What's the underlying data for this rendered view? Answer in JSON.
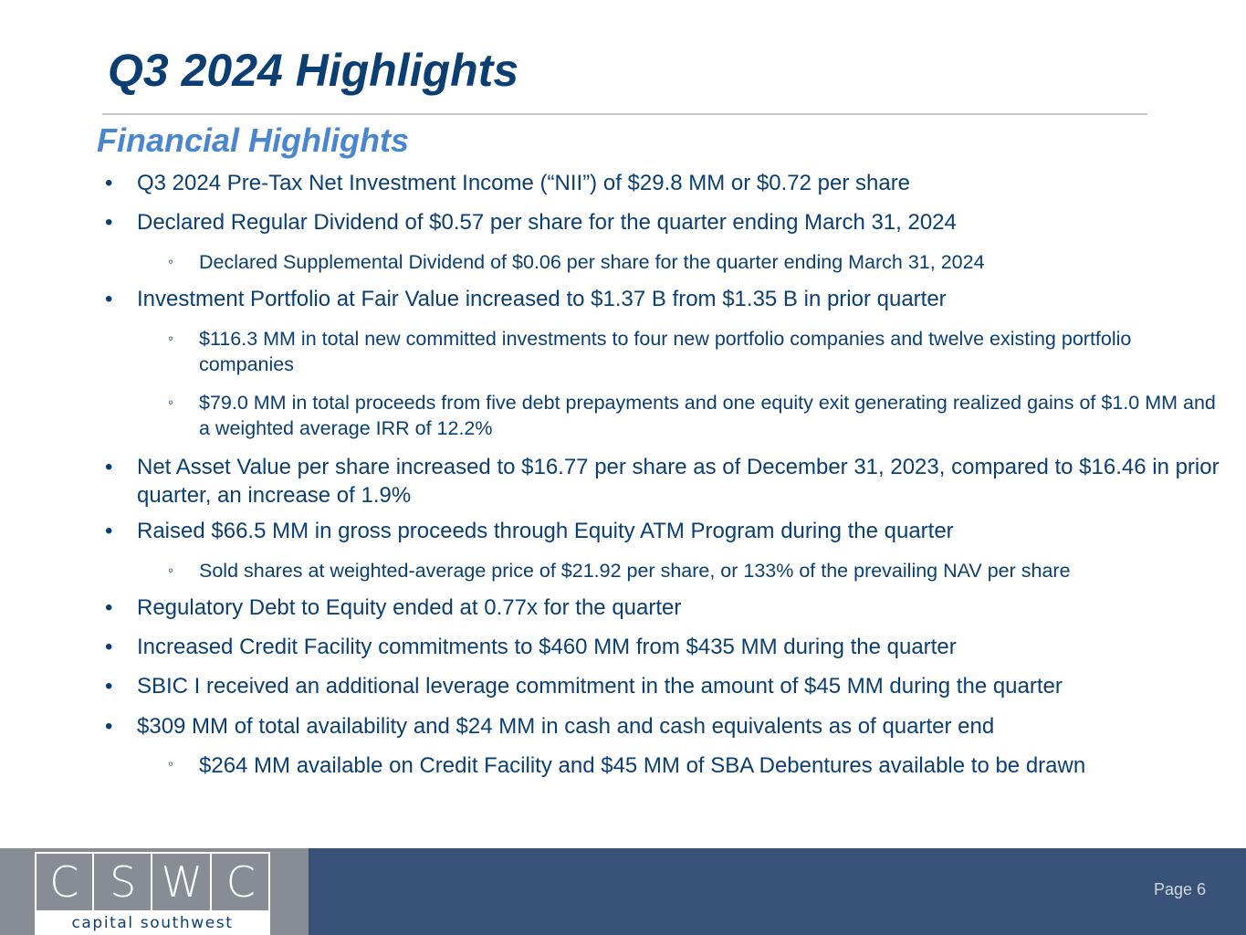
{
  "slide": {
    "title": "Q3 2024 Highlights",
    "section_heading": "Financial Highlights",
    "bullets": [
      {
        "level": 1,
        "marker": "•",
        "text": "Q3 2024 Pre-Tax Net Investment Income (“NII”) of $29.8 MM or $0.72 per share"
      },
      {
        "level": 1,
        "marker": "•",
        "text": "Declared Regular Dividend of $0.57 per share for the quarter ending March 31, 2024"
      },
      {
        "level": 2,
        "marker": "◦",
        "text": "Declared Supplemental Dividend of $0.06 per share for the quarter ending March 31, 2024"
      },
      {
        "level": 1,
        "marker": "•",
        "text": "Investment Portfolio at Fair Value increased to $1.37 B from $1.35 B in prior quarter"
      },
      {
        "level": 2,
        "marker": "◦",
        "text": "$116.3 MM in total new committed investments to four new portfolio companies and twelve existing portfolio companies"
      },
      {
        "level": 2,
        "marker": "◦",
        "text": "$79.0 MM in total proceeds from five debt prepayments and one equity exit generating realized gains of $1.0 MM and a weighted average IRR of 12.2%"
      },
      {
        "level": 1,
        "marker": "•",
        "text": "Net Asset Value per share increased to $16.77 per share as of December 31, 2023, compared to $16.46 in prior quarter, an increase of 1.9%"
      },
      {
        "level": 1,
        "marker": "•",
        "text": "Raised $66.5 MM in gross proceeds through Equity ATM Program during the quarter"
      },
      {
        "level": 2,
        "marker": "◦",
        "text": "Sold shares at weighted-average price of $21.92 per share, or 133% of the prevailing NAV per share"
      },
      {
        "level": 1,
        "marker": "•",
        "text": "Regulatory Debt to Equity ended at 0.77x for the quarter"
      },
      {
        "level": 1,
        "marker": "•",
        "text": "Increased Credit Facility commitments to $460 MM from $435 MM during the quarter"
      },
      {
        "level": 1,
        "marker": "•",
        "text": "SBIC I received an additional leverage commitment in the amount of $45 MM during the quarter"
      },
      {
        "level": 1,
        "marker": "•",
        "text": "$309 MM of total availability and $24 MM in cash and cash equivalents as of quarter end"
      },
      {
        "level": 2,
        "marker": "◦",
        "text": "$264 MM available on Credit Facility and $45 MM of SBA Debentures available to be drawn"
      }
    ]
  },
  "footer": {
    "logo_letters": [
      "C",
      "S",
      "W",
      "C"
    ],
    "logo_wordmark": "capital southwest",
    "page_label": "Page 6"
  },
  "colors": {
    "title": "#0b3f73",
    "section_heading": "#4a86d0",
    "body_text": "#0b3f73",
    "footer_band": "#395378",
    "logo_panel": "#878c95"
  }
}
